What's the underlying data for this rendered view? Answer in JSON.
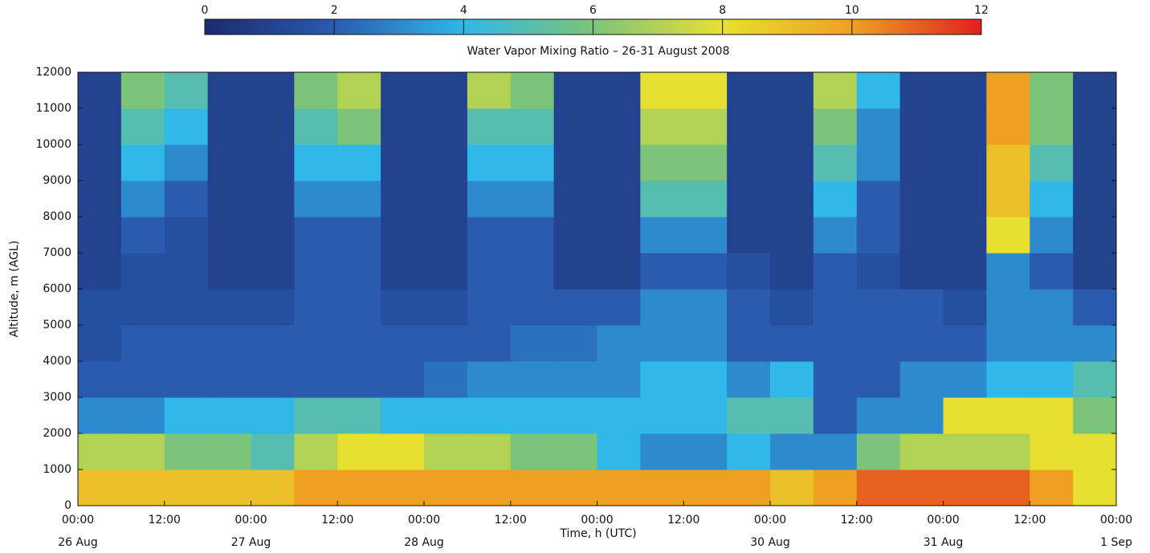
{
  "chart_data": {
    "type": "heatmap",
    "title": "Water Vapor Mixing Ratio – 26-31 August 2008",
    "xlabel": "Time, h (UTC)",
    "ylabel": "Altitude, m (AGL)",
    "xlim": [
      0,
      144
    ],
    "xticks": [
      {
        "value": 0,
        "label": "00:00"
      },
      {
        "value": 12,
        "label": "12:00"
      },
      {
        "value": 24,
        "label": "00:00"
      },
      {
        "value": 36,
        "label": "12:00"
      },
      {
        "value": 48,
        "label": "00:00"
      },
      {
        "value": 60,
        "label": "12:00"
      },
      {
        "value": 72,
        "label": "00:00"
      },
      {
        "value": 84,
        "label": "12:00"
      },
      {
        "value": 96,
        "label": "00:00"
      },
      {
        "value": 108,
        "label": "12:00"
      },
      {
        "value": 120,
        "label": "00:00"
      },
      {
        "value": 132,
        "label": "12:00"
      },
      {
        "value": 144,
        "label": "00:00"
      }
    ],
    "date_labels": [
      {
        "value": 0,
        "label": "26 Aug"
      },
      {
        "value": 24,
        "label": "27 Aug"
      },
      {
        "value": 48,
        "label": "28 Aug"
      },
      {
        "value": 96,
        "label": "30 Aug"
      },
      {
        "value": 120,
        "label": "31 Aug"
      },
      {
        "value": 144,
        "label": "1 Sep"
      }
    ],
    "ylim": [
      0,
      12000
    ],
    "yticks": [
      0,
      1000,
      2000,
      3000,
      4000,
      5000,
      6000,
      7000,
      8000,
      9000,
      10000,
      11000,
      12000
    ],
    "x_bins": [
      0,
      6,
      12,
      18,
      24,
      30,
      36,
      42,
      48,
      54,
      60,
      66,
      72,
      78,
      84,
      90,
      96,
      102,
      108,
      114,
      120,
      126,
      132,
      138,
      144
    ],
    "y_bins": [
      0,
      1000,
      2000,
      3000,
      4000,
      5000,
      6000,
      7000,
      8000,
      9000,
      10000,
      11000,
      12000
    ],
    "colorbar": {
      "lim": [
        0,
        12
      ],
      "ticks": [
        0,
        2,
        4,
        6,
        8,
        10,
        12
      ]
    },
    "colormap": [
      "#1b2a6e",
      "#2a5bb0",
      "#2fb8e8",
      "#7cc47a",
      "#e8e030",
      "#f0a020",
      "#e02020"
    ],
    "values": [
      [
        9,
        7,
        3,
        2,
        1.5,
        1.5,
        1,
        1,
        1,
        1,
        1,
        1
      ],
      [
        9,
        7,
        3,
        2,
        2,
        1.5,
        1.5,
        2,
        3,
        4,
        5,
        6
      ],
      [
        9,
        6,
        4,
        2,
        2,
        1.5,
        1.5,
        1.5,
        2,
        3,
        4,
        5
      ],
      [
        9,
        6,
        4,
        2,
        2,
        1.5,
        1,
        1,
        1,
        1,
        1,
        1
      ],
      [
        9,
        5,
        4,
        2,
        2,
        1.5,
        1,
        1,
        1,
        1,
        1,
        1
      ],
      [
        10,
        7,
        5,
        2,
        2,
        2,
        2,
        2,
        3,
        4,
        5,
        6
      ],
      [
        10,
        8,
        5,
        2,
        2,
        2,
        2,
        2,
        3,
        4,
        6,
        7
      ],
      [
        10,
        8,
        4,
        2,
        2,
        1.5,
        1,
        1,
        1,
        1,
        1,
        1
      ],
      [
        10,
        7,
        4,
        2.5,
        2,
        1.5,
        1,
        1,
        1,
        1,
        1,
        1
      ],
      [
        10,
        7,
        4,
        3,
        2,
        2,
        2,
        2,
        3,
        4,
        5,
        7
      ],
      [
        10,
        6,
        4,
        3,
        2.5,
        2,
        2,
        2,
        3,
        4,
        5,
        6
      ],
      [
        10,
        6,
        4,
        3,
        2.5,
        2,
        1,
        1,
        1,
        1,
        1,
        1
      ],
      [
        10,
        4,
        4,
        3,
        3,
        2,
        1,
        1,
        1,
        1,
        1,
        1
      ],
      [
        10,
        3,
        4,
        4,
        3,
        3,
        2,
        3,
        5,
        6,
        7,
        8
      ],
      [
        10,
        3,
        4,
        4,
        3,
        3,
        2,
        3,
        5,
        6,
        7,
        8
      ],
      [
        10,
        4,
        5,
        3,
        2,
        2,
        1.5,
        1,
        1,
        1,
        1,
        1
      ],
      [
        9,
        3,
        5,
        4,
        2,
        1.5,
        1,
        1,
        1,
        1,
        1,
        1
      ],
      [
        10,
        3,
        2,
        2,
        2,
        2,
        2,
        3,
        4,
        5,
        6,
        7
      ],
      [
        11,
        6,
        3,
        2,
        2,
        2,
        1.5,
        2,
        2,
        3,
        3,
        4
      ],
      [
        11,
        7,
        3,
        3,
        2,
        2,
        1,
        1,
        1,
        1,
        1,
        1
      ],
      [
        11,
        7,
        8,
        3,
        2,
        1.5,
        1,
        1,
        1,
        1,
        1,
        1
      ],
      [
        11,
        7,
        8,
        4,
        3,
        3,
        3,
        8,
        9,
        9,
        10,
        10
      ],
      [
        10,
        8,
        8,
        4,
        3,
        3,
        2,
        3,
        4,
        5,
        6,
        6
      ],
      [
        8,
        8,
        6,
        5,
        3,
        2,
        1,
        1,
        1,
        1,
        1,
        1
      ]
    ]
  }
}
